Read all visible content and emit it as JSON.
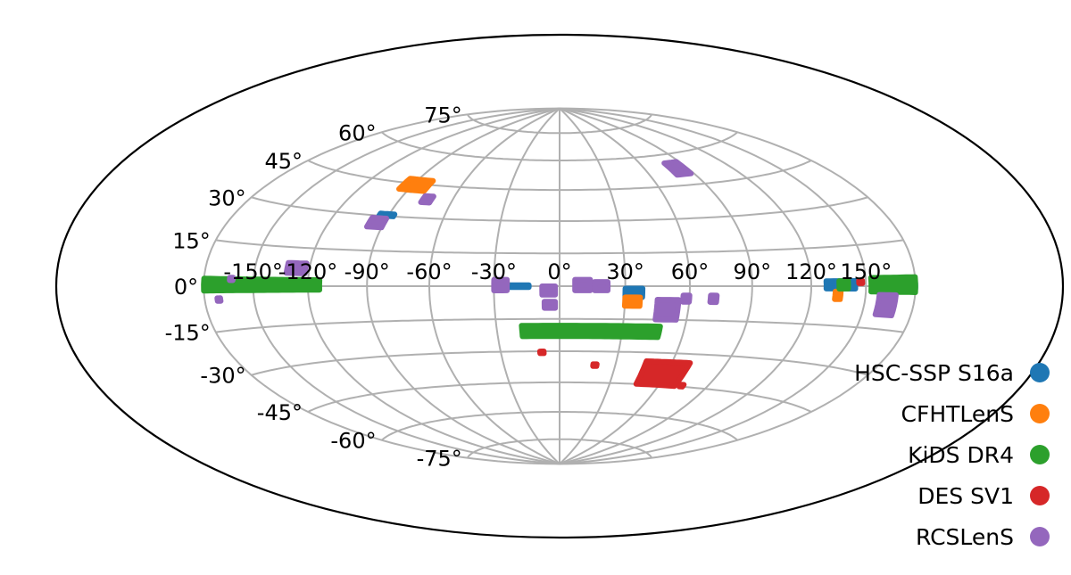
{
  "chart_data": {
    "type": "scatter",
    "projection": "hammer-aitoff",
    "grid": true,
    "legend_placement": "lower-right",
    "lon_ticks": [
      -150,
      -120,
      -90,
      -60,
      -30,
      0,
      30,
      60,
      90,
      120,
      150
    ],
    "lat_ticks": [
      75,
      60,
      45,
      30,
      15,
      0,
      -15,
      -30,
      -45,
      -60,
      -75
    ],
    "lon_tick_labels": [
      "-150°",
      "-120°",
      "-90°",
      "-60°",
      "-30°",
      "0°",
      "30°",
      "60°",
      "90°",
      "120°",
      "150°"
    ],
    "lat_tick_labels": [
      "75°",
      "60°",
      "45°",
      "30°",
      "15°",
      "0°",
      "-15°",
      "-30°",
      "-45°",
      "-60°",
      "-75°"
    ],
    "series": [
      {
        "name": "HSC-SSP S16a",
        "color": "#1f77b4",
        "regions": [
          {
            "lon": [
              -178,
              -175
            ],
            "lat": [
              -1,
              2
            ]
          },
          {
            "lon": [
              -146,
              -128
            ],
            "lat": [
              -1,
              1
            ]
          },
          {
            "lon": [
              -95,
              -87
            ],
            "lat": [
              30,
              31
            ]
          },
          {
            "lon": [
              -90,
              -88
            ],
            "lat": [
              42,
              43
            ]
          },
          {
            "lon": [
              -25,
              -14
            ],
            "lat": [
              -0.5,
              0.5
            ]
          },
          {
            "lon": [
              30,
              38
            ],
            "lat": [
              -5,
              -1
            ]
          },
          {
            "lon": [
              128,
              144
            ],
            "lat": [
              -1,
              2
            ]
          },
          {
            "lon": [
              178,
              180
            ],
            "lat": [
              -1,
              1
            ]
          }
        ]
      },
      {
        "name": "CFHTLenS",
        "color": "#ff7f0e",
        "regions": [
          {
            "lon": [
              -96,
              -80
            ],
            "lat": [
              42,
              47
            ]
          },
          {
            "lon": [
              -28,
              -24
            ],
            "lat": [
              0,
              2
            ]
          },
          {
            "lon": [
              30,
              37
            ],
            "lat": [
              -9,
              -5
            ]
          },
          {
            "lon": [
              133,
              136
            ],
            "lat": [
              -5,
              -2
            ]
          }
        ]
      },
      {
        "name": "KiDS DR4",
        "color": "#2ca02c",
        "regions": [
          {
            "lon": [
              -180,
              -114
            ],
            "lat": [
              -1.5,
              2.5
            ]
          },
          {
            "lon": [
              -18,
              48
            ],
            "lat": [
              -23,
              -18
            ]
          },
          {
            "lon": [
              135,
              140
            ],
            "lat": [
              -1,
              2
            ]
          },
          {
            "lon": [
              153,
              180
            ],
            "lat": [
              -2,
              3
            ]
          }
        ]
      },
      {
        "name": "DES SV1",
        "color": "#d62728",
        "regions": [
          {
            "lon": [
              46,
              70
            ],
            "lat": [
              -45,
              -34
            ]
          },
          {
            "lon": [
              -10,
              -8
            ],
            "lat": [
              -31,
              -30
            ]
          },
          {
            "lon": [
              18,
              20
            ],
            "lat": [
              -37,
              -36
            ]
          },
          {
            "lon": [
              73,
              75
            ],
            "lat": [
              -45,
              -44
            ]
          },
          {
            "lon": [
              146,
              148
            ],
            "lat": [
              1,
              2
            ]
          }
        ]
      },
      {
        "name": "RCSLenS",
        "color": "#9467bd",
        "regions": [
          {
            "lon": [
              -132,
              -122
            ],
            "lat": [
              5,
              9
            ]
          },
          {
            "lon": [
              -172,
              -170
            ],
            "lat": [
              -5,
              -4
            ]
          },
          {
            "lon": [
              -164,
              -162
            ],
            "lat": [
              2,
              3
            ]
          },
          {
            "lon": [
              -98,
              -90
            ],
            "lat": [
              25,
              29
            ]
          },
          {
            "lon": [
              -77,
              -72
            ],
            "lat": [
              37,
              40
            ]
          },
          {
            "lon": [
              -30,
              -24
            ],
            "lat": [
              -2,
              3
            ]
          },
          {
            "lon": [
              -8,
              -2
            ],
            "lat": [
              -4,
              0
            ]
          },
          {
            "lon": [
              -7,
              -2
            ],
            "lat": [
              -10,
              -7
            ]
          },
          {
            "lon": [
              7,
              14
            ],
            "lat": [
              -2,
              3
            ]
          },
          {
            "lon": [
              16,
              22
            ],
            "lat": [
              -2,
              2
            ]
          },
          {
            "lon": [
              45,
              55
            ],
            "lat": [
              -15,
              -6
            ]
          },
          {
            "lon": [
              57,
              60
            ],
            "lat": [
              -7,
              -4
            ]
          },
          {
            "lon": [
              70,
              73
            ],
            "lat": [
              -7,
              -4
            ]
          },
          {
            "lon": [
              78,
              88
            ],
            "lat": [
              50,
              56
            ]
          },
          {
            "lon": [
              158,
              168
            ],
            "lat": [
              -10,
              -3
            ]
          }
        ]
      }
    ]
  }
}
